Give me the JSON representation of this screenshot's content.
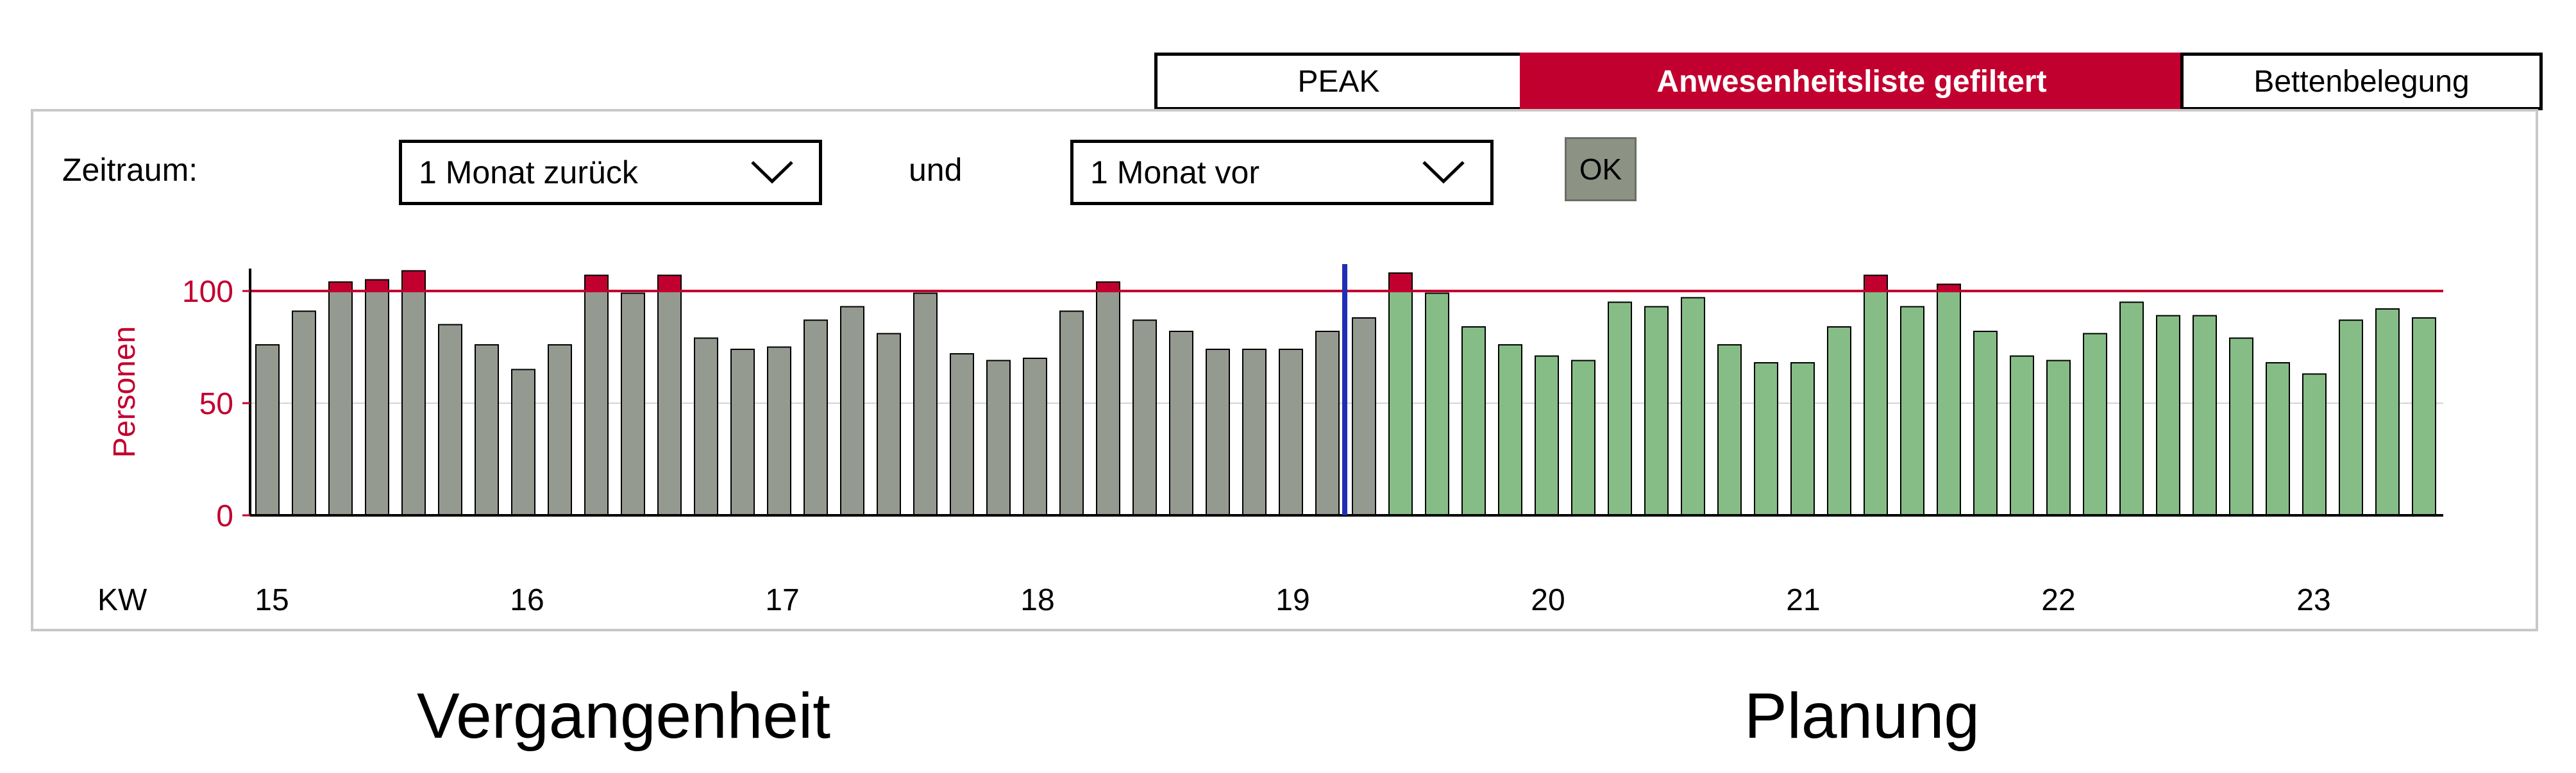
{
  "tabs": [
    {
      "label": "PEAK",
      "active": false
    },
    {
      "label": "Anwesenheitsliste gefiltert",
      "active": true
    },
    {
      "label": "Bettenbelegung",
      "active": false
    }
  ],
  "filter": {
    "zeitraum_label": "Zeitraum:",
    "from_value": "1 Monat zurück",
    "und_label": "und",
    "to_value": "1 Monat vor",
    "ok_label": "OK"
  },
  "captions": {
    "past": "Vergangenheit",
    "planning": "Planung"
  },
  "colors": {
    "past_bar": "#959a91",
    "plan_bar": "#86bd86",
    "over_capacity": "#c2002f",
    "capacity_line": "#c2002f",
    "today_line": "#1f2fb5",
    "axis_text": "#c2002f"
  },
  "chart_data": {
    "type": "bar",
    "ylabel": "Personen",
    "ylim": [
      0,
      110
    ],
    "yticks": [
      0,
      50,
      100
    ],
    "capacity": 100,
    "xlabel": "KW",
    "week_labels": [
      "15",
      "16",
      "17",
      "18",
      "19",
      "20",
      "21",
      "22",
      "23"
    ],
    "today_index": 30,
    "bars": [
      {
        "v": 76,
        "p": "past"
      },
      {
        "v": 91,
        "p": "past"
      },
      {
        "v": 104,
        "p": "past"
      },
      {
        "v": 105,
        "p": "past"
      },
      {
        "v": 109,
        "p": "past"
      },
      {
        "v": 85,
        "p": "past"
      },
      {
        "v": 76,
        "p": "past"
      },
      {
        "v": 65,
        "p": "past"
      },
      {
        "v": 76,
        "p": "past"
      },
      {
        "v": 107,
        "p": "past"
      },
      {
        "v": 99,
        "p": "past"
      },
      {
        "v": 107,
        "p": "past"
      },
      {
        "v": 79,
        "p": "past"
      },
      {
        "v": 74,
        "p": "past"
      },
      {
        "v": 75,
        "p": "past"
      },
      {
        "v": 87,
        "p": "past"
      },
      {
        "v": 93,
        "p": "past"
      },
      {
        "v": 81,
        "p": "past"
      },
      {
        "v": 99,
        "p": "past"
      },
      {
        "v": 72,
        "p": "past"
      },
      {
        "v": 69,
        "p": "past"
      },
      {
        "v": 70,
        "p": "past"
      },
      {
        "v": 91,
        "p": "past"
      },
      {
        "v": 104,
        "p": "past"
      },
      {
        "v": 87,
        "p": "past"
      },
      {
        "v": 82,
        "p": "past"
      },
      {
        "v": 74,
        "p": "past"
      },
      {
        "v": 74,
        "p": "past"
      },
      {
        "v": 74,
        "p": "past"
      },
      {
        "v": 82,
        "p": "past"
      },
      {
        "v": 88,
        "p": "past"
      },
      {
        "v": 108,
        "p": "plan"
      },
      {
        "v": 99,
        "p": "plan"
      },
      {
        "v": 84,
        "p": "plan"
      },
      {
        "v": 76,
        "p": "plan"
      },
      {
        "v": 71,
        "p": "plan"
      },
      {
        "v": 69,
        "p": "plan"
      },
      {
        "v": 95,
        "p": "plan"
      },
      {
        "v": 93,
        "p": "plan"
      },
      {
        "v": 97,
        "p": "plan"
      },
      {
        "v": 76,
        "p": "plan"
      },
      {
        "v": 68,
        "p": "plan"
      },
      {
        "v": 68,
        "p": "plan"
      },
      {
        "v": 84,
        "p": "plan"
      },
      {
        "v": 107,
        "p": "plan"
      },
      {
        "v": 93,
        "p": "plan"
      },
      {
        "v": 103,
        "p": "plan"
      },
      {
        "v": 82,
        "p": "plan"
      },
      {
        "v": 71,
        "p": "plan"
      },
      {
        "v": 69,
        "p": "plan"
      },
      {
        "v": 81,
        "p": "plan"
      },
      {
        "v": 95,
        "p": "plan"
      },
      {
        "v": 89,
        "p": "plan"
      },
      {
        "v": 89,
        "p": "plan"
      },
      {
        "v": 79,
        "p": "plan"
      },
      {
        "v": 68,
        "p": "plan"
      },
      {
        "v": 63,
        "p": "plan"
      },
      {
        "v": 87,
        "p": "plan"
      },
      {
        "v": 92,
        "p": "plan"
      },
      {
        "v": 88,
        "p": "plan"
      }
    ]
  }
}
